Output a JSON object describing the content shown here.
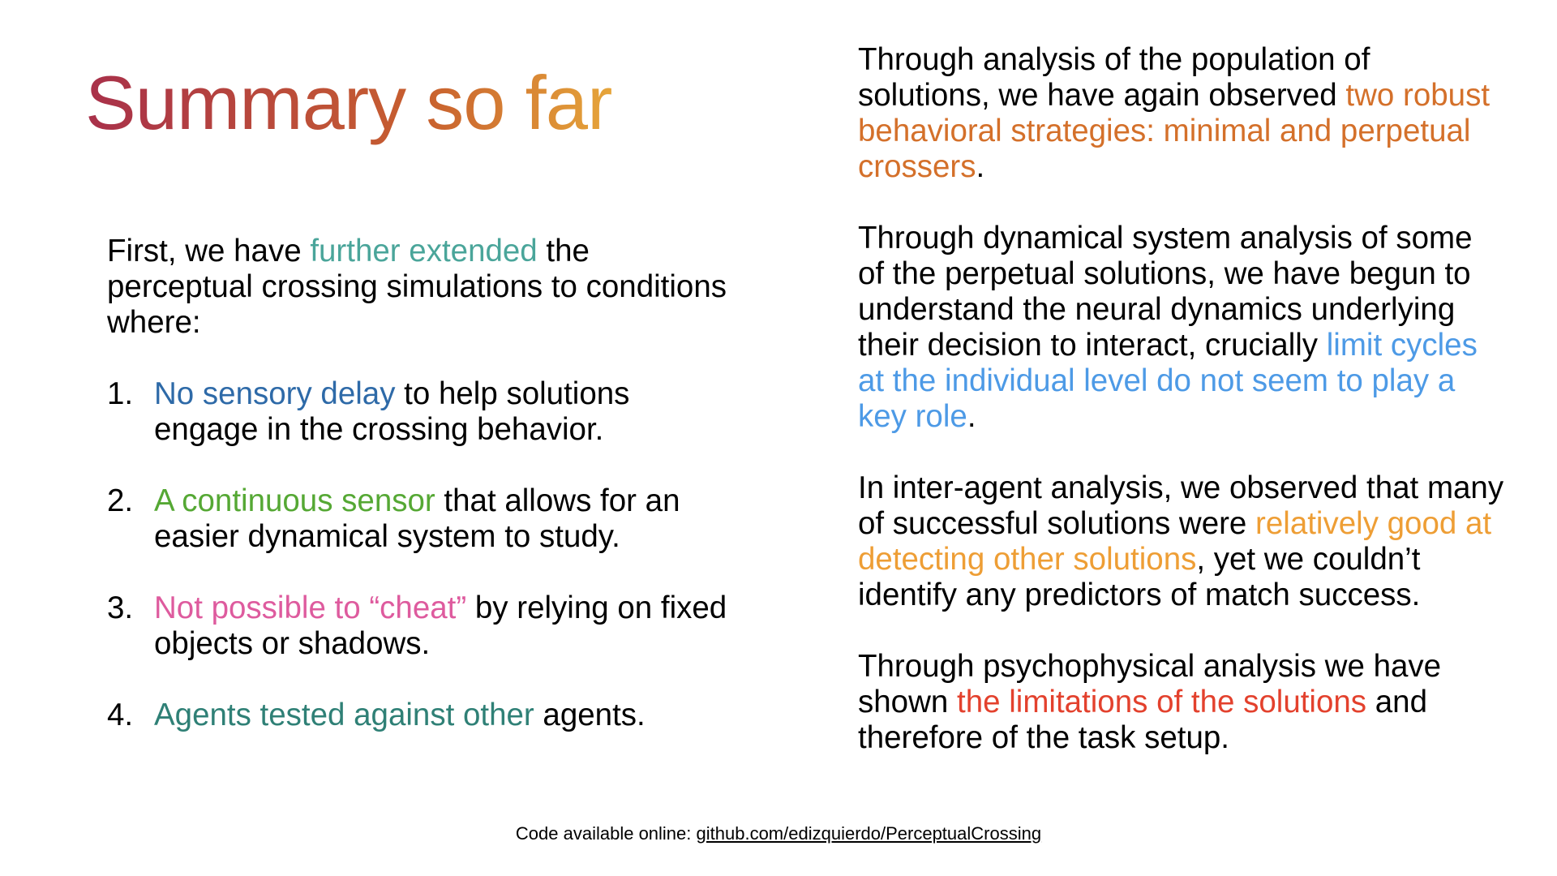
{
  "colors": {
    "title_gradient": [
      "#a8304a",
      "#c8602e",
      "#e6a53a"
    ],
    "teal": "#4aa59a",
    "blue": "#2e6aa8",
    "green": "#55a834",
    "pink": "#de5b9e",
    "dark_teal": "#2f8076",
    "orange": "#d4702a",
    "light_blue": "#4d9ae6",
    "light_orange": "#ee9e35",
    "red": "#e3412d",
    "text": "#000000"
  },
  "title": {
    "part1": "Summary ",
    "part2": "so far"
  },
  "left": {
    "intro": {
      "prefix": "First, we have ",
      "highlight": "further extended",
      "suffix": " the perceptual crossing simulations to conditions where:"
    },
    "items": [
      {
        "num": "1.",
        "highlight": "No sensory delay",
        "rest": " to help solutions engage in the crossing behavior."
      },
      {
        "num": "2.",
        "highlight": "A continuous sensor",
        "rest": " that allows for an easier dynamical system to study."
      },
      {
        "num": "3.",
        "highlight": "Not possible to “cheat”",
        "rest": " by relying on fixed objects or shadows."
      },
      {
        "num": "4.",
        "highlight": "Agents tested against other",
        "rest": " agents."
      }
    ]
  },
  "right": {
    "p1": {
      "prefix": "Through analysis of the population of solutions, we have again observed ",
      "highlight": "two robust behavioral strategies: minimal and perpetual crossers",
      "suffix": "."
    },
    "p2": {
      "prefix": "Through dynamical system analysis of some of the perpetual solutions, we have begun to understand the neural dynamics underlying their decision to interact, crucially ",
      "highlight": "limit cycles at the individual level do not seem to play a key role",
      "suffix": "."
    },
    "p3": {
      "prefix": "In inter-agent analysis, we observed that many of successful solutions were ",
      "highlight": "relatively good at detecting other solutions",
      "suffix": ", yet we couldn’t identify any predictors of match success."
    },
    "p4": {
      "prefix": "Through psychophysical analysis we have shown ",
      "highlight": "the limitations of the solutions",
      "suffix": " and therefore of the task setup."
    }
  },
  "footer": {
    "label": "Code available online: ",
    "link": "github.com/edizquierdo/PerceptualCrossing"
  }
}
